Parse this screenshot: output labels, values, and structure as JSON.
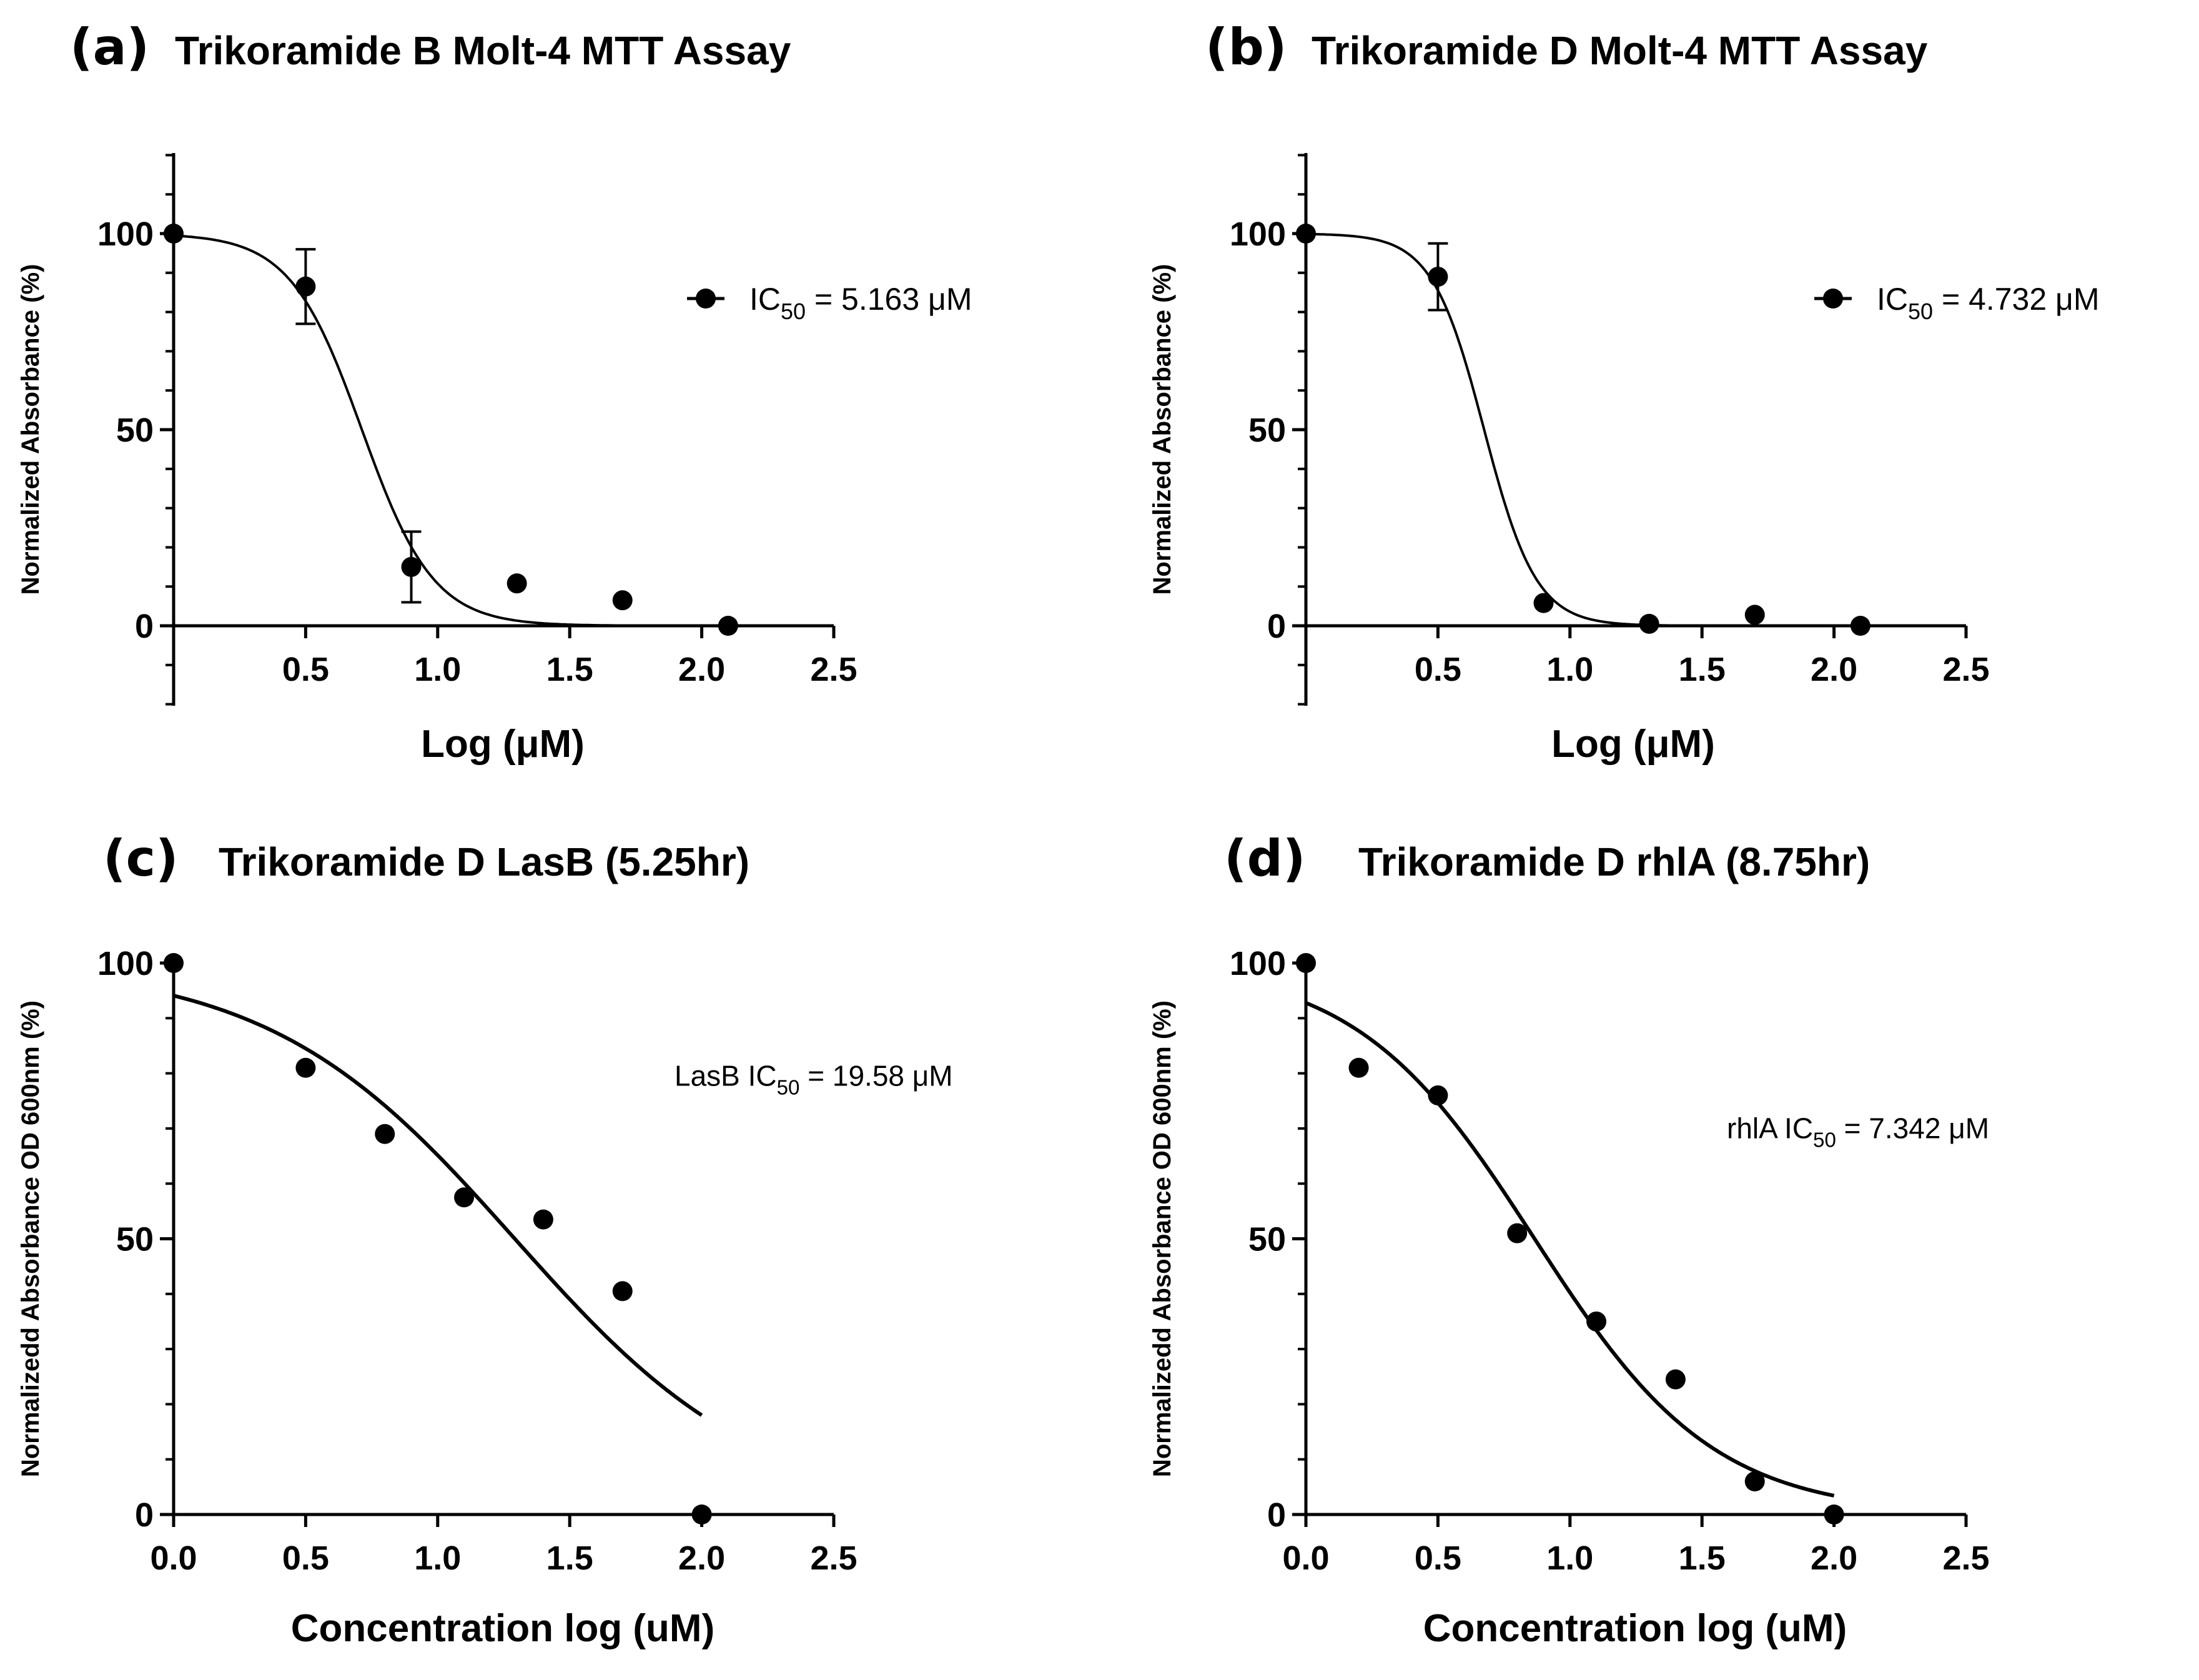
{
  "chart_data": [
    {
      "type": "scatter",
      "letter": "(a)",
      "title": "Trikoramide B Molt-4 MTT Assay",
      "xlabel": "Log (μM)",
      "ylabel": "Normalized Absorbance (%)",
      "xlim": [
        0,
        2.5
      ],
      "ylim": [
        -20,
        120
      ],
      "xticks": [
        "0.5",
        "1.0",
        "1.5",
        "2.0",
        "2.5"
      ],
      "yticks": [
        "0",
        "50",
        "100"
      ],
      "legend": {
        "label_main": "IC",
        "label_sub": "50",
        "label_rest": " = 5.163 μM",
        "marker": true,
        "placement": "top-right"
      },
      "fit": {
        "bottom": 0,
        "top": 100,
        "logIC50": 0.713,
        "hill": -3.2
      },
      "series": [
        {
          "x": [
            0.0,
            0.5,
            0.9,
            1.3,
            1.7,
            2.1
          ],
          "y": [
            100,
            86.5,
            15,
            10.8,
            6.5,
            0
          ],
          "err": [
            null,
            9.5,
            9,
            null,
            null,
            null
          ]
        }
      ]
    },
    {
      "type": "scatter",
      "letter": "(b)",
      "title": "Trikoramide D Molt-4 MTT Assay",
      "xlabel": "Log (μM)",
      "ylabel": "Normalized Absorbance (%)",
      "xlim": [
        0,
        2.5
      ],
      "ylim": [
        -20,
        120
      ],
      "xticks": [
        "0.5",
        "1.0",
        "1.5",
        "2.0",
        "2.5"
      ],
      "yticks": [
        "0",
        "50",
        "100"
      ],
      "legend": {
        "label_main": "IC",
        "label_sub": "50",
        "label_rest": " = 4.732 μM",
        "marker": true,
        "placement": "top-right"
      },
      "fit": {
        "bottom": 0,
        "top": 100,
        "logIC50": 0.675,
        "hill": -4.4
      },
      "series": [
        {
          "x": [
            0.0,
            0.5,
            0.9,
            1.3,
            1.7,
            2.1
          ],
          "y": [
            100,
            89,
            5.8,
            0.5,
            2.8,
            0
          ],
          "err": [
            null,
            8.5,
            null,
            null,
            null,
            null
          ]
        }
      ]
    },
    {
      "type": "scatter",
      "letter": "(c)",
      "title": "Trikoramide D LasB (5.25hr)",
      "xlabel": "Concentration log (uM)",
      "ylabel": "Normalizedd Absorbance OD 600nm (%)",
      "xlim": [
        0,
        2.5
      ],
      "ylim": [
        0,
        100
      ],
      "xticks": [
        "0.0",
        "0.5",
        "1.0",
        "1.5",
        "2.0",
        "2.5"
      ],
      "yticks": [
        "0",
        "50",
        "100"
      ],
      "legend": {
        "label_main": "LasB IC",
        "label_sub": "50",
        "label_rest": " = 19.58 μM",
        "marker": false,
        "placement": "top-right"
      },
      "fit": {
        "bottom": 0,
        "top": 100,
        "logIC50": 1.292,
        "hill": -0.93,
        "xmax": 2.0
      },
      "series": [
        {
          "x": [
            0.0,
            0.5,
            0.8,
            1.1,
            1.4,
            1.7,
            2.0
          ],
          "y": [
            100,
            81,
            69,
            57.5,
            53.5,
            40.5,
            0
          ]
        }
      ]
    },
    {
      "type": "scatter",
      "letter": "(d)",
      "title": "Trikoramide D rhlA (8.75hr)",
      "xlabel": "Concentration log (uM)",
      "ylabel": "Normalizedd Absorbance OD 600nm (%)",
      "xlim": [
        0,
        2.5
      ],
      "ylim": [
        0,
        100
      ],
      "xticks": [
        "0.0",
        "0.5",
        "1.0",
        "1.5",
        "2.0",
        "2.5"
      ],
      "yticks": [
        "0",
        "50",
        "100"
      ],
      "legend": {
        "label_main": "rhlA IC",
        "label_sub": "50",
        "label_rest": " = 7.342 μM",
        "marker": false,
        "placement": "top-right"
      },
      "fit": {
        "bottom": 0,
        "top": 100,
        "logIC50": 0.866,
        "hill": -1.28,
        "xmax": 2.0
      },
      "series": [
        {
          "x": [
            0.0,
            0.2,
            0.5,
            0.8,
            1.1,
            1.4,
            1.7,
            2.0
          ],
          "y": [
            100,
            81,
            76,
            51,
            35,
            24.5,
            6,
            0
          ]
        }
      ]
    }
  ]
}
